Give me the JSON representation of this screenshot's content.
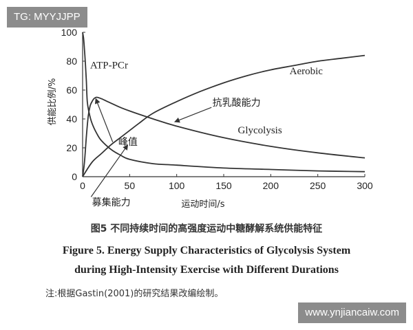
{
  "watermark_top_left": "TG: MYYJJPP",
  "watermark_bottom_right": "www.ynjiancaiw.com",
  "captions": {
    "zh": "图5  不同持续时间的高强度运动中糖酵解系统供能特征",
    "en_line1": "Figure 5.   Energy Supply Characteristics of Glycolysis System",
    "en_line2": "during High-Intensity Exercise with Different Durations",
    "note": "注:根据Gastin(2001)的研究结果改编绘制。"
  },
  "chart_data": {
    "type": "line",
    "title": "",
    "xlabel": "运动时间/s",
    "ylabel": "供能比例/%",
    "xlim": [
      0,
      300
    ],
    "ylim": [
      0,
      100
    ],
    "xticks": [
      0,
      50,
      100,
      150,
      200,
      250,
      300
    ],
    "yticks": [
      0,
      20,
      40,
      60,
      80,
      100
    ],
    "grid": false,
    "line_color": "#333333",
    "series": [
      {
        "name": "ATP-PCr",
        "x": [
          0,
          1,
          2,
          3,
          4,
          5,
          7,
          10,
          15,
          20,
          30,
          40,
          50,
          75,
          100,
          150,
          200,
          250,
          300
        ],
        "y": [
          100,
          96,
          88,
          78,
          66,
          52,
          44,
          37,
          30,
          25,
          19,
          15,
          12,
          9,
          8,
          6,
          5,
          4,
          3.5
        ]
      },
      {
        "name": "Glycolysis",
        "x": [
          0,
          2,
          4,
          6,
          8,
          10,
          12,
          15,
          20,
          25,
          30,
          40,
          50,
          75,
          100,
          150,
          200,
          250,
          300
        ],
        "y": [
          0,
          10,
          28,
          42,
          49,
          52,
          54,
          55,
          54,
          52.5,
          51,
          48,
          45.5,
          40,
          35,
          27,
          21,
          16.5,
          13
        ]
      },
      {
        "name": "Aerobic",
        "x": [
          0,
          10,
          20,
          30,
          40,
          50,
          60,
          75,
          100,
          125,
          150,
          175,
          200,
          225,
          250,
          275,
          300
        ],
        "y": [
          0,
          10,
          16,
          22,
          27,
          32,
          37,
          44,
          52,
          59,
          65,
          70,
          74,
          77,
          80,
          82,
          84
        ]
      }
    ],
    "annotations": [
      {
        "id": "atp",
        "text": "ATP-PCr",
        "x": 8,
        "y": 75
      },
      {
        "id": "aerobic",
        "text": "Aerobic",
        "x": 220,
        "y": 71
      },
      {
        "id": "glyco",
        "text": "Glycolysis",
        "x": 165,
        "y": 30
      },
      {
        "id": "peak",
        "text": "峰值",
        "x": 38,
        "y": 22,
        "arrow_from": [
          32,
          24
        ],
        "arrow_to": [
          14,
          54
        ]
      },
      {
        "id": "capacity",
        "text": "抗乳酸能力",
        "x": 138,
        "y": 49,
        "arrow_from": [
          137,
          48
        ],
        "arrow_to": [
          98,
          38
        ]
      },
      {
        "id": "recruit",
        "text": "募集能力",
        "x": 10,
        "y": -20,
        "arrow_from": [
          9,
          -14
        ],
        "arrow_to": [
          48,
          22
        ]
      }
    ]
  }
}
